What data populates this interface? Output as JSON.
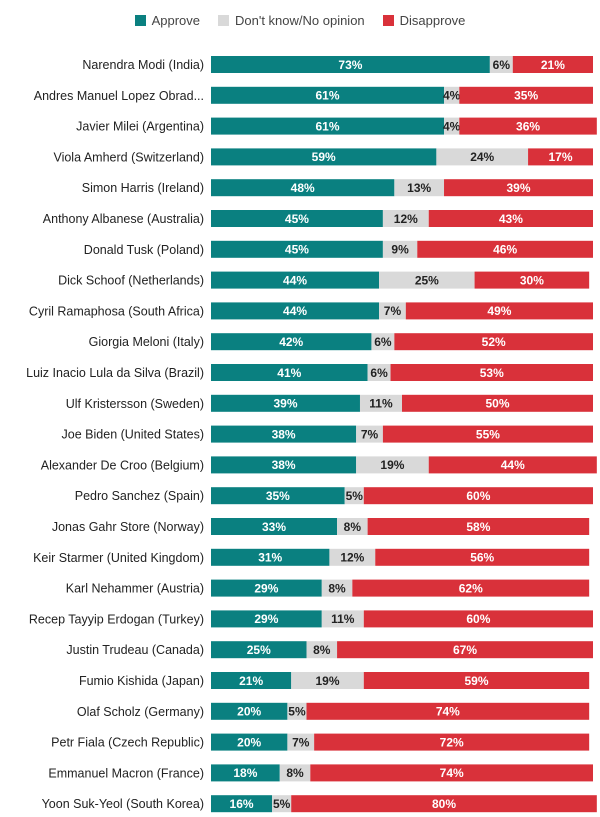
{
  "chart_data": {
    "type": "bar",
    "orientation": "horizontal",
    "stacked": true,
    "legend_position": "top-center",
    "grid": false,
    "xlim": [
      0,
      100
    ],
    "categories": [
      "Narendra Modi (India)",
      "Andres Manuel Lopez Obrad...",
      "Javier Milei (Argentina)",
      "Viola Amherd (Switzerland)",
      "Simon Harris (Ireland)",
      "Anthony Albanese (Australia)",
      "Donald Tusk (Poland)",
      "Dick Schoof (Netherlands)",
      "Cyril Ramaphosa (South Africa)",
      "Giorgia Meloni (Italy)",
      "Luiz Inacio Lula da Silva (Brazil)",
      "Ulf Kristersson (Sweden)",
      "Joe Biden (United States)",
      "Alexander De Croo (Belgium)",
      "Pedro Sanchez (Spain)",
      "Jonas Gahr Store (Norway)",
      "Keir Starmer (United Kingdom)",
      "Karl Nehammer (Austria)",
      "Recep Tayyip Erdogan (Turkey)",
      "Justin Trudeau (Canada)",
      "Fumio Kishida (Japan)",
      "Olaf Scholz (Germany)",
      "Petr Fiala (Czech Republic)",
      "Emmanuel Macron (France)",
      "Yoon Suk-Yeol (South Korea)"
    ],
    "series": [
      {
        "name": "Approve",
        "color": "#0a8080",
        "label_color": "#ffffff",
        "values": [
          73,
          61,
          61,
          59,
          48,
          45,
          45,
          44,
          44,
          42,
          41,
          39,
          38,
          38,
          35,
          33,
          31,
          29,
          29,
          25,
          21,
          20,
          20,
          18,
          16
        ]
      },
      {
        "name": "Don't know/No opinion",
        "color": "#d9d9d9",
        "label_color": "#222222",
        "values": [
          6,
          4,
          4,
          24,
          13,
          12,
          9,
          25,
          7,
          6,
          6,
          11,
          7,
          19,
          5,
          8,
          12,
          8,
          11,
          8,
          19,
          5,
          7,
          8,
          5
        ]
      },
      {
        "name": "Disapprove",
        "color": "#d9313a",
        "label_color": "#ffffff",
        "values": [
          21,
          35,
          36,
          17,
          39,
          43,
          46,
          30,
          49,
          52,
          53,
          50,
          55,
          44,
          60,
          58,
          56,
          62,
          60,
          67,
          59,
          74,
          72,
          74,
          80
        ]
      }
    ]
  }
}
